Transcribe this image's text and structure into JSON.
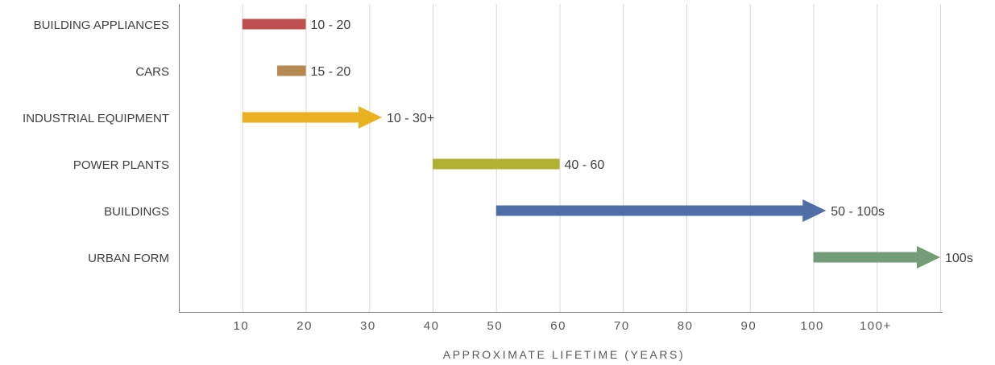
{
  "chart_data": {
    "type": "bar",
    "orientation": "horizontal-range",
    "xlabel": "APPROXIMATE LIFETIME (YEARS)",
    "x_ticks": [
      "10",
      "20",
      "30",
      "40",
      "50",
      "60",
      "70",
      "80",
      "90",
      "100",
      "100+"
    ],
    "xlim": [
      0,
      120
    ],
    "grid": true,
    "categories": [
      "BUILDING APPLIANCES",
      "CARS",
      "INDUSTRIAL EQUIPMENT",
      "POWER PLANTS",
      "BUILDINGS",
      "URBAN FORM"
    ],
    "series": [
      {
        "category": "BUILDING APPLIANCES",
        "start": 10,
        "end": 20,
        "open_ended": false,
        "label": "10 - 20",
        "color": "#C0504D"
      },
      {
        "category": "CARS",
        "start": 15.5,
        "end": 20,
        "open_ended": false,
        "label": "15 - 20",
        "color": "#B5894F"
      },
      {
        "category": "INDUSTRIAL EQUIPMENT",
        "start": 10,
        "end": 32,
        "open_ended": true,
        "label": "10 - 30+",
        "color": "#EAB220"
      },
      {
        "category": "POWER PLANTS",
        "start": 40,
        "end": 60,
        "open_ended": false,
        "label": "40 - 60",
        "color": "#AEB132"
      },
      {
        "category": "BUILDINGS",
        "start": 50,
        "end": 102,
        "open_ended": true,
        "label": "50 - 100s",
        "color": "#4F6EA8"
      },
      {
        "category": "URBAN FORM",
        "start": 100,
        "end": 120,
        "open_ended": true,
        "label": "100s",
        "color": "#749C79"
      }
    ]
  }
}
